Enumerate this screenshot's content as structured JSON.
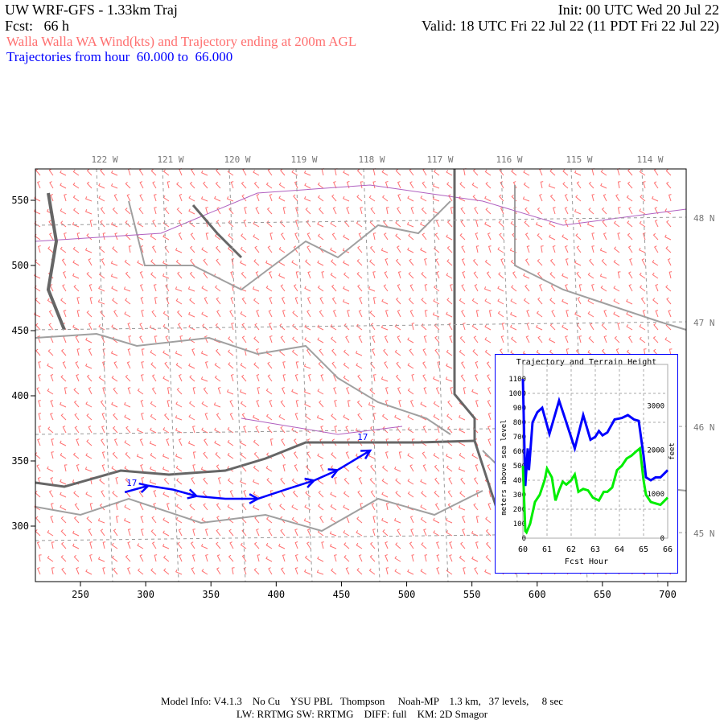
{
  "header": {
    "title": "UW WRF-GFS - 1.33km Traj",
    "init": "Init: 00 UTC Wed 20 Jul 22",
    "fcst": "Fcst:   66 h",
    "valid": "Valid: 18 UTC Fri 22 Jul 22 (11 PDT Fri 22 Jul 22)",
    "subtitle": "Walla Walla WA Wind(kts) and Trajectory ending at 200m AGL",
    "traj_range": "Trajectories from hour  60.000 to  66.000"
  },
  "colors": {
    "wind": "#ff6f6f",
    "trajectory": "#0000ff",
    "terrain": "#00ee00",
    "borders": "#a0a0a0",
    "coast": "#666666",
    "counties": "#b060c0"
  },
  "map": {
    "x_ticks": [
      "250",
      "300",
      "350",
      "400",
      "450",
      "500",
      "550",
      "600",
      "650",
      "700"
    ],
    "y_ticks": [
      "550",
      "500",
      "450",
      "400",
      "350",
      "300"
    ],
    "lon_labels": [
      "122 W",
      "121 W",
      "120 W",
      "119 W",
      "118 W",
      "117 W",
      "116 W",
      "115 W",
      "114 W"
    ],
    "lat_labels": [
      "48 N",
      "47 N",
      "46 N",
      "45 N"
    ],
    "trajectory": {
      "start_label": "17",
      "end_label": "17",
      "points": [
        [
          284,
          326
        ],
        [
          302,
          331
        ],
        [
          321,
          328
        ],
        [
          339,
          323
        ],
        [
          361,
          321
        ],
        [
          386,
          321
        ],
        [
          407,
          328
        ],
        [
          429,
          335
        ],
        [
          447,
          343
        ],
        [
          472,
          358
        ]
      ]
    }
  },
  "chart_data": {
    "type": "line",
    "title": "Trajectory and Terrain Height",
    "xlabel": "Fcst Hour",
    "ylabel": "meters above sea level",
    "y2label": "feet",
    "xlim": [
      60,
      66
    ],
    "ylim": [
      0,
      1100
    ],
    "x_ticks": [
      "60",
      "61",
      "62",
      "63",
      "64",
      "65",
      "66"
    ],
    "y_ticks": [
      "0",
      "100",
      "200",
      "300",
      "400",
      "500",
      "600",
      "700",
      "800",
      "900",
      "1000",
      "1100"
    ],
    "y2_ticks": [
      "0",
      "1000",
      "2000",
      "3000"
    ],
    "grid": true,
    "series": [
      {
        "color": "#0000ff",
        "points": [
          [
            60,
            1100
          ],
          [
            60.1,
            360
          ],
          [
            60.2,
            620
          ],
          [
            60.25,
            470
          ],
          [
            60.4,
            800
          ],
          [
            60.6,
            870
          ],
          [
            60.8,
            900
          ],
          [
            61.1,
            720
          ],
          [
            61.5,
            950
          ],
          [
            61.7,
            850
          ],
          [
            62.15,
            620
          ],
          [
            62.5,
            850
          ],
          [
            62.8,
            680
          ],
          [
            63,
            700
          ],
          [
            63.15,
            740
          ],
          [
            63.3,
            710
          ],
          [
            63.5,
            730
          ],
          [
            63.8,
            820
          ],
          [
            64.1,
            830
          ],
          [
            64.35,
            850
          ],
          [
            64.6,
            820
          ],
          [
            64.8,
            810
          ],
          [
            65,
            570
          ],
          [
            65.1,
            420
          ],
          [
            65.3,
            400
          ],
          [
            65.5,
            420
          ],
          [
            65.7,
            420
          ],
          [
            66,
            470
          ]
        ]
      },
      {
        "color": "#00ee00",
        "points": [
          [
            60,
            500
          ],
          [
            60.1,
            50
          ],
          [
            60.15,
            40
          ],
          [
            60.3,
            100
          ],
          [
            60.5,
            250
          ],
          [
            60.7,
            300
          ],
          [
            60.9,
            400
          ],
          [
            61,
            480
          ],
          [
            61.2,
            420
          ],
          [
            61.35,
            260
          ],
          [
            61.5,
            330
          ],
          [
            61.65,
            390
          ],
          [
            61.8,
            370
          ],
          [
            62,
            400
          ],
          [
            62.15,
            440
          ],
          [
            62.3,
            320
          ],
          [
            62.5,
            340
          ],
          [
            62.7,
            330
          ],
          [
            62.9,
            280
          ],
          [
            63.15,
            260
          ],
          [
            63.35,
            320
          ],
          [
            63.5,
            320
          ],
          [
            63.7,
            350
          ],
          [
            63.9,
            470
          ],
          [
            64.1,
            500
          ],
          [
            64.3,
            550
          ],
          [
            64.5,
            570
          ],
          [
            64.7,
            600
          ],
          [
            64.85,
            620
          ],
          [
            65,
            400
          ],
          [
            65.1,
            300
          ],
          [
            65.3,
            250
          ],
          [
            65.5,
            240
          ],
          [
            65.7,
            230
          ],
          [
            66,
            280
          ]
        ]
      }
    ]
  },
  "footer": {
    "line1": "Model Info: V4.1.3    No Cu    YSU PBL   Thompson     Noah-MP    1.3 km,   37 levels,     8 sec",
    "line2": "LW: RRTMG SW: RRTMG    DIFF: full    KM: 2D Smagor"
  }
}
